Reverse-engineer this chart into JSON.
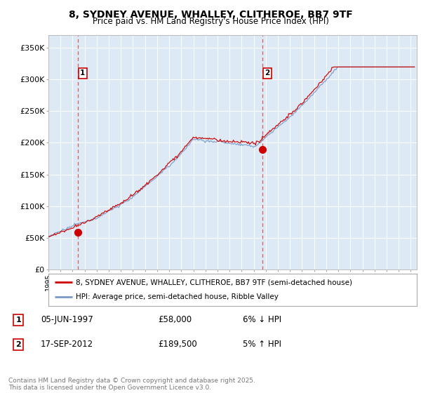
{
  "title": "8, SYDNEY AVENUE, WHALLEY, CLITHEROE, BB7 9TF",
  "subtitle": "Price paid vs. HM Land Registry's House Price Index (HPI)",
  "xlim_start": 1995.0,
  "xlim_end": 2025.5,
  "ylim": [
    0,
    370000
  ],
  "yticks": [
    0,
    50000,
    100000,
    150000,
    200000,
    250000,
    300000,
    350000
  ],
  "ytick_labels": [
    "£0",
    "£50K",
    "£100K",
    "£150K",
    "£200K",
    "£250K",
    "£300K",
    "£350K"
  ],
  "sale1_date": 1997.43,
  "sale1_price": 58000,
  "sale2_date": 2012.71,
  "sale2_price": 189500,
  "legend_line1": "8, SYDNEY AVENUE, WHALLEY, CLITHEROE, BB7 9TF (semi-detached house)",
  "legend_line2": "HPI: Average price, semi-detached house, Ribble Valley",
  "line_color_sold": "#cc0000",
  "line_color_hpi": "#7799cc",
  "plot_bg": "#ddeaf5",
  "footer": "Contains HM Land Registry data © Crown copyright and database right 2025.\nThis data is licensed under the Open Government Licence v3.0.",
  "xtick_years": [
    1995,
    1996,
    1997,
    1998,
    1999,
    2000,
    2001,
    2002,
    2003,
    2004,
    2005,
    2006,
    2007,
    2008,
    2009,
    2010,
    2011,
    2012,
    2013,
    2014,
    2015,
    2016,
    2017,
    2018,
    2019,
    2020,
    2021,
    2022,
    2023,
    2024,
    2025
  ]
}
